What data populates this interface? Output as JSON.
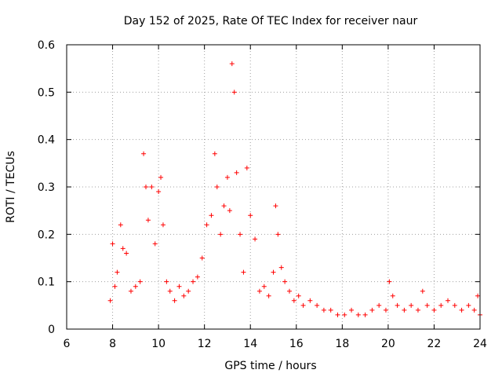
{
  "chart_data": {
    "type": "scatter",
    "title": "Day 152 of 2025, Rate Of TEC Index for receiver naur",
    "xlabel": "GPS time / hours",
    "ylabel": "ROTI / TECUs",
    "xlim": [
      6,
      24
    ],
    "ylim": [
      0,
      0.6
    ],
    "xticks": [
      "6",
      "8",
      "10",
      "12",
      "14",
      "16",
      "18",
      "20",
      "22",
      "24"
    ],
    "yticks": [
      "0",
      "0.1",
      "0.2",
      "0.3",
      "0.4",
      "0.5",
      "0.6"
    ],
    "grid": true,
    "marker": "plus",
    "color": "#ff0000",
    "series": [
      {
        "x": [
          7.9,
          8.0,
          8.1,
          8.2,
          8.35,
          8.45,
          8.6,
          8.8,
          9.0,
          9.2,
          9.35,
          9.45,
          9.55,
          9.7,
          9.85,
          10.0,
          10.1,
          10.2,
          10.35,
          10.5,
          10.7,
          10.9,
          11.1,
          11.3,
          11.5,
          11.7,
          11.9,
          12.1,
          12.3,
          12.45,
          12.55,
          12.7,
          12.85,
          13.0,
          13.1,
          13.2,
          13.3,
          13.4,
          13.55,
          13.7,
          13.85,
          14.0,
          14.2,
          14.4,
          14.6,
          14.8,
          15.0,
          15.1,
          15.2,
          15.35,
          15.5,
          15.7,
          15.9,
          16.1,
          16.3,
          16.6,
          16.9,
          17.2,
          17.5,
          17.8,
          18.1,
          18.4,
          18.7,
          19.0,
          19.3,
          19.6,
          19.9,
          20.05,
          20.2,
          20.4,
          20.7,
          21.0,
          21.3,
          21.5,
          21.7,
          22.0,
          22.3,
          22.6,
          22.9,
          23.2,
          23.5,
          23.75,
          23.9,
          24.0
        ],
        "y": [
          0.06,
          0.18,
          0.09,
          0.12,
          0.22,
          0.17,
          0.16,
          0.08,
          0.09,
          0.1,
          0.37,
          0.3,
          0.23,
          0.3,
          0.18,
          0.29,
          0.32,
          0.22,
          0.1,
          0.08,
          0.06,
          0.09,
          0.07,
          0.08,
          0.1,
          0.11,
          0.15,
          0.22,
          0.24,
          0.37,
          0.3,
          0.2,
          0.26,
          0.32,
          0.25,
          0.56,
          0.5,
          0.33,
          0.2,
          0.12,
          0.34,
          0.24,
          0.19,
          0.08,
          0.09,
          0.07,
          0.12,
          0.26,
          0.2,
          0.13,
          0.1,
          0.08,
          0.06,
          0.07,
          0.05,
          0.06,
          0.05,
          0.04,
          0.04,
          0.03,
          0.03,
          0.04,
          0.03,
          0.03,
          0.04,
          0.05,
          0.04,
          0.1,
          0.07,
          0.05,
          0.04,
          0.05,
          0.04,
          0.08,
          0.05,
          0.04,
          0.05,
          0.06,
          0.05,
          0.04,
          0.05,
          0.04,
          0.07,
          0.03
        ]
      }
    ]
  }
}
